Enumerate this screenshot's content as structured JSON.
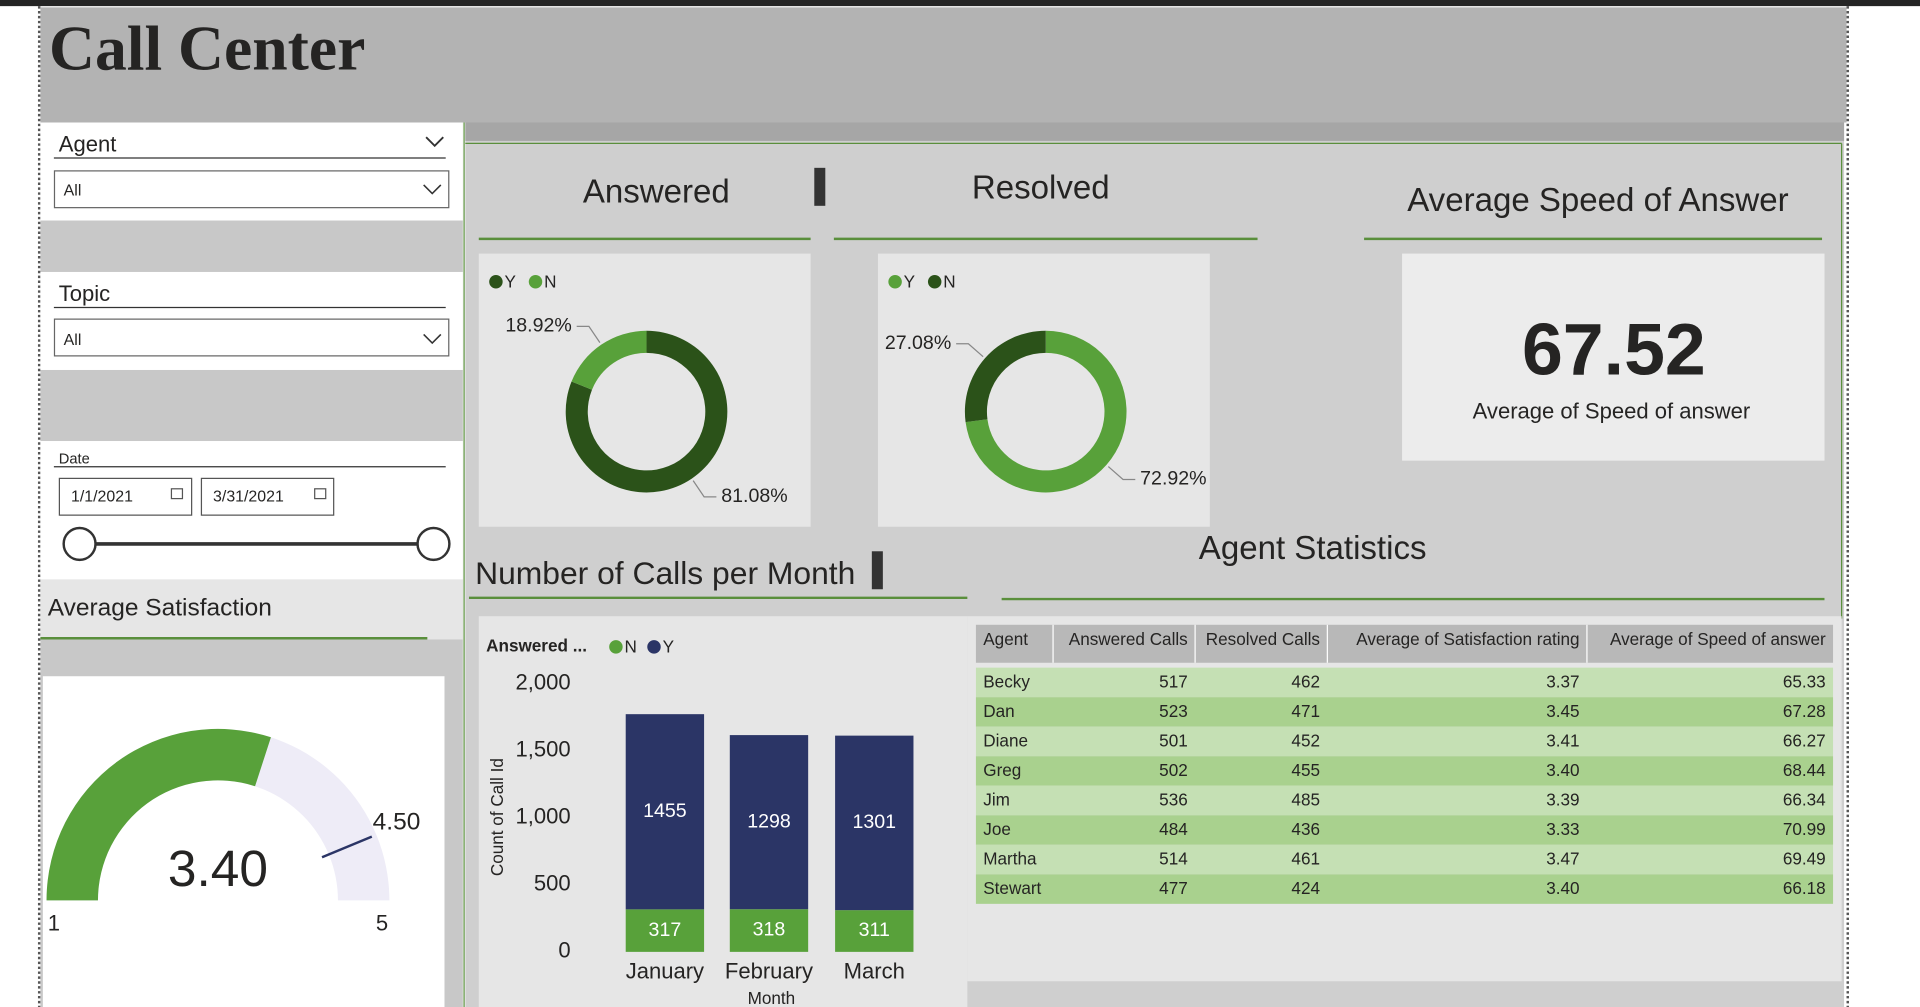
{
  "header": {
    "title": "Call Center"
  },
  "slicers": {
    "agent": {
      "label": "Agent",
      "value": "All"
    },
    "topic": {
      "label": "Topic",
      "value": "All"
    },
    "date": {
      "label": "Date",
      "start": "1/1/2021",
      "end": "3/31/2021"
    }
  },
  "chart_data": [
    {
      "type": "donut",
      "title": "Answered",
      "categories": [
        "Y",
        "N"
      ],
      "values": [
        81.08,
        18.92
      ],
      "value_labels": [
        "81.08%",
        "18.92%"
      ],
      "colors": [
        "#2b5219",
        "#58a13a"
      ]
    },
    {
      "type": "donut",
      "title": "Resolved",
      "categories": [
        "Y",
        "N"
      ],
      "values": [
        72.92,
        27.08
      ],
      "value_labels": [
        "72.92%",
        "27.08%"
      ],
      "colors": [
        "#58a13a",
        "#2b5219"
      ]
    },
    {
      "type": "gauge",
      "title": "Average Satisfaction",
      "values": [
        3.4
      ],
      "value_labels": [
        "3.40"
      ],
      "ylim": [
        1,
        5
      ],
      "target": {
        "value": 4.5,
        "label": "4.50"
      },
      "color": "#58a13a",
      "target_color": "#2b3566"
    },
    {
      "type": "stacked-bar",
      "title": "Number of Calls per Month",
      "legend_title": "Answered ...",
      "x_label": "Month",
      "y_label": "Count of Call Id",
      "categories": [
        "January",
        "February",
        "March"
      ],
      "series": [
        {
          "name": "N",
          "color": "#58a13a",
          "values": [
            317,
            318,
            311
          ]
        },
        {
          "name": "Y",
          "color": "#2b3566",
          "values": [
            1455,
            1298,
            1301
          ]
        }
      ],
      "ylim": [
        0,
        2000
      ],
      "yticks": [
        0,
        500,
        {
          "value": 1000,
          "label": "1,000"
        },
        {
          "value": 1500,
          "label": "1,500"
        },
        {
          "value": 2000,
          "label": "2,000"
        }
      ],
      "grid": false
    }
  ],
  "kpi": {
    "title": "Average Speed of Answer",
    "value": "67.52",
    "label": "Average of Speed of answer"
  },
  "table": {
    "title": "Agent Statistics",
    "columns": [
      "Agent",
      "Answered Calls",
      "Resolved Calls",
      "Average of Satisfaction rating",
      "Average of Speed of answer"
    ],
    "rows": [
      [
        "Becky",
        "517",
        "462",
        "3.37",
        "65.33"
      ],
      [
        "Dan",
        "523",
        "471",
        "3.45",
        "67.28"
      ],
      [
        "Diane",
        "501",
        "452",
        "3.41",
        "66.27"
      ],
      [
        "Greg",
        "502",
        "455",
        "3.40",
        "68.44"
      ],
      [
        "Jim",
        "536",
        "485",
        "3.39",
        "66.34"
      ],
      [
        "Joe",
        "484",
        "436",
        "3.33",
        "70.99"
      ],
      [
        "Martha",
        "514",
        "461",
        "3.47",
        "69.49"
      ],
      [
        "Stewart",
        "477",
        "424",
        "3.40",
        "66.18"
      ]
    ]
  }
}
